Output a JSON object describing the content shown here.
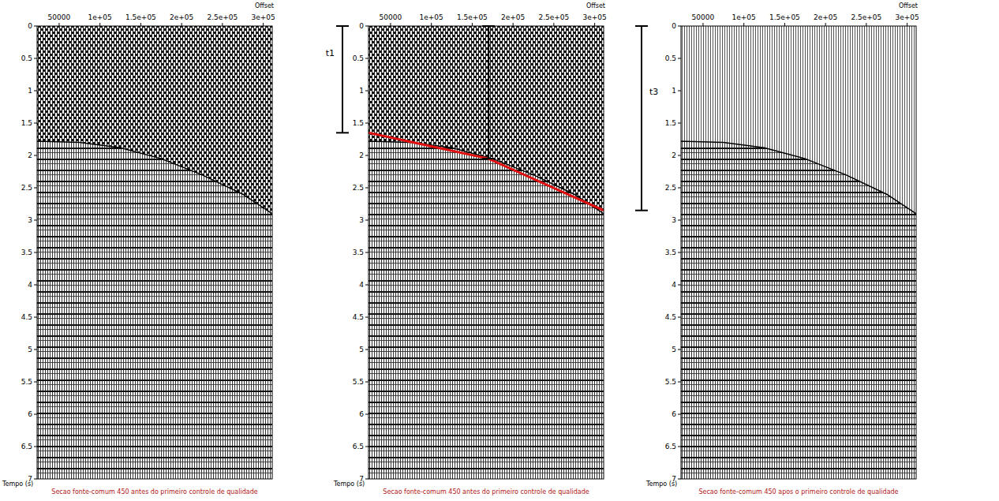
{
  "chart_data": [
    {
      "type": "gather",
      "caption": "Secao fonte-comum 450 antes do primeiro controle de qualidade",
      "x_label": "Offset",
      "y_label": "Tempo (s)",
      "xlim": [
        23000,
        311000
      ],
      "ylim": [
        0,
        7
      ],
      "xticks": [
        50000,
        {
          "value": 100000,
          "label": "1e+05"
        },
        {
          "value": 150000,
          "label": "1.5e+05"
        },
        {
          "value": 200000,
          "label": "2e+05"
        },
        {
          "value": 250000,
          "label": "2.5e+05"
        },
        {
          "value": 300000,
          "label": "3e+05"
        }
      ],
      "yticks": [
        0,
        0.5,
        1,
        1.5,
        2,
        2.5,
        3,
        3.5,
        4,
        4.5,
        5,
        5.5,
        6,
        6.5,
        7
      ],
      "first_break": {
        "x": [
          23000,
          75000,
          125000,
          175000,
          225000,
          275000,
          311000
        ],
        "values": [
          1.78,
          1.8,
          1.88,
          2.05,
          2.3,
          2.6,
          2.9
        ]
      }
    },
    {
      "type": "gather",
      "caption": "Secao fonte-comum 450 antes do primeiro controle de qualidade",
      "x_label": "Offset",
      "y_label": "Tempo (s)",
      "xlim": [
        23000,
        311000
      ],
      "ylim": [
        0,
        7
      ],
      "xticks": [
        50000,
        {
          "value": 100000,
          "label": "1e+05"
        },
        {
          "value": 150000,
          "label": "1.5e+05"
        },
        {
          "value": 200000,
          "label": "2e+05"
        },
        {
          "value": 250000,
          "label": "2.5e+05"
        },
        {
          "value": 300000,
          "label": "3e+05"
        }
      ],
      "yticks": [
        0,
        0.5,
        1,
        1.5,
        2,
        2.5,
        3,
        3.5,
        4,
        4.5,
        5,
        5.5,
        6,
        6.5,
        7
      ],
      "first_break": {
        "x": [
          23000,
          75000,
          125000,
          175000,
          225000,
          275000,
          311000
        ],
        "values": [
          1.78,
          1.8,
          1.88,
          2.05,
          2.3,
          2.6,
          2.9
        ]
      },
      "series": [
        {
          "color": "#e01010",
          "x": [
            23000,
            170000,
            311000
          ],
          "values": [
            1.65,
            2.05,
            2.85
          ]
        }
      ],
      "annotations": [
        {
          "label": "t1",
          "position": "left",
          "t_start": 0,
          "t_end": 1.65
        },
        {
          "offset": 170000,
          "t_start": 0,
          "t_end": 2.05
        },
        {
          "label": "t3",
          "position": "right",
          "t_start": 0,
          "t_end": 2.85
        }
      ]
    },
    {
      "type": "muted_gather",
      "caption": "Secao fonte-comum 450 apos o primeiro controle de qualidade",
      "x_label": "Offset",
      "y_label": "Tempo (s)",
      "xlim": [
        23000,
        311000
      ],
      "ylim": [
        0,
        7
      ],
      "xticks": [
        50000,
        {
          "value": 100000,
          "label": "1e+05"
        },
        {
          "value": 150000,
          "label": "1.5e+05"
        },
        {
          "value": 200000,
          "label": "2e+05"
        },
        {
          "value": 250000,
          "label": "2.5e+05"
        },
        {
          "value": 300000,
          "label": "3e+05"
        }
      ],
      "yticks": [
        0,
        0.5,
        1,
        1.5,
        2,
        2.5,
        3,
        3.5,
        4,
        4.5,
        5,
        5.5,
        6,
        6.5,
        7
      ],
      "first_break": {
        "x": [
          23000,
          75000,
          125000,
          175000,
          225000,
          275000,
          311000
        ],
        "values": [
          1.78,
          1.8,
          1.88,
          2.05,
          2.3,
          2.6,
          2.9
        ]
      }
    }
  ]
}
